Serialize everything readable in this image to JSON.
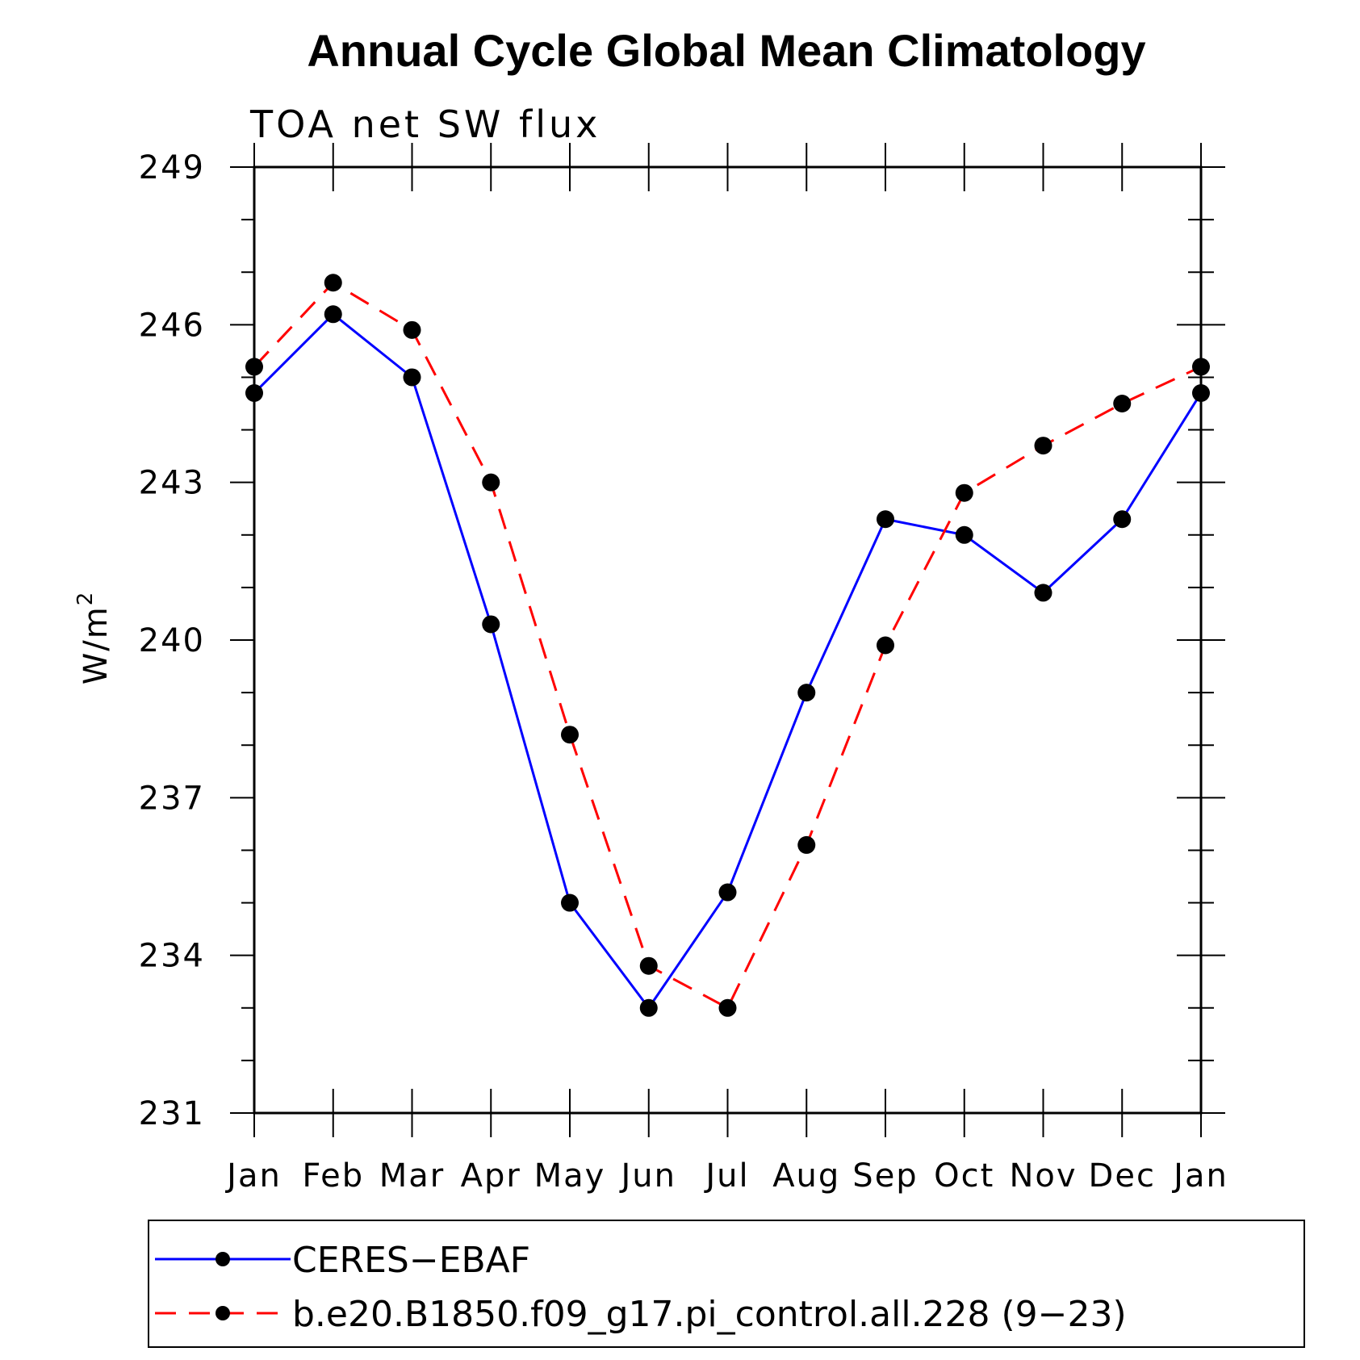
{
  "chart_data": {
    "type": "line",
    "title": "Annual Cycle Global Mean Climatology",
    "subtitle": "TOA net SW flux",
    "ylabel": "W/m",
    "ylabel_superscript": "2",
    "ylim": [
      231,
      249
    ],
    "yticks": [
      "231",
      "234",
      "237",
      "240",
      "243",
      "246",
      "249"
    ],
    "categories": [
      "Jan",
      "Feb",
      "Mar",
      "Apr",
      "May",
      "Jun",
      "Jul",
      "Aug",
      "Sep",
      "Oct",
      "Nov",
      "Dec",
      "Jan"
    ],
    "series": [
      {
        "name": "CERES−EBAF",
        "color": "#0000ff",
        "dash": "solid",
        "values": [
          244.7,
          246.2,
          245.0,
          240.3,
          235.0,
          233.0,
          235.2,
          239.0,
          242.3,
          242.0,
          240.9,
          242.3,
          244.7
        ]
      },
      {
        "name": "b.e20.B1850.f09_g17.pi_control.all.228 (9−23)",
        "color": "#ff0000",
        "dash": "dashed",
        "values": [
          245.2,
          246.8,
          245.9,
          243.0,
          238.2,
          233.8,
          233.0,
          236.1,
          239.9,
          242.8,
          243.7,
          244.5,
          245.2
        ]
      }
    ],
    "grid": false,
    "legend_position": "bottom"
  }
}
